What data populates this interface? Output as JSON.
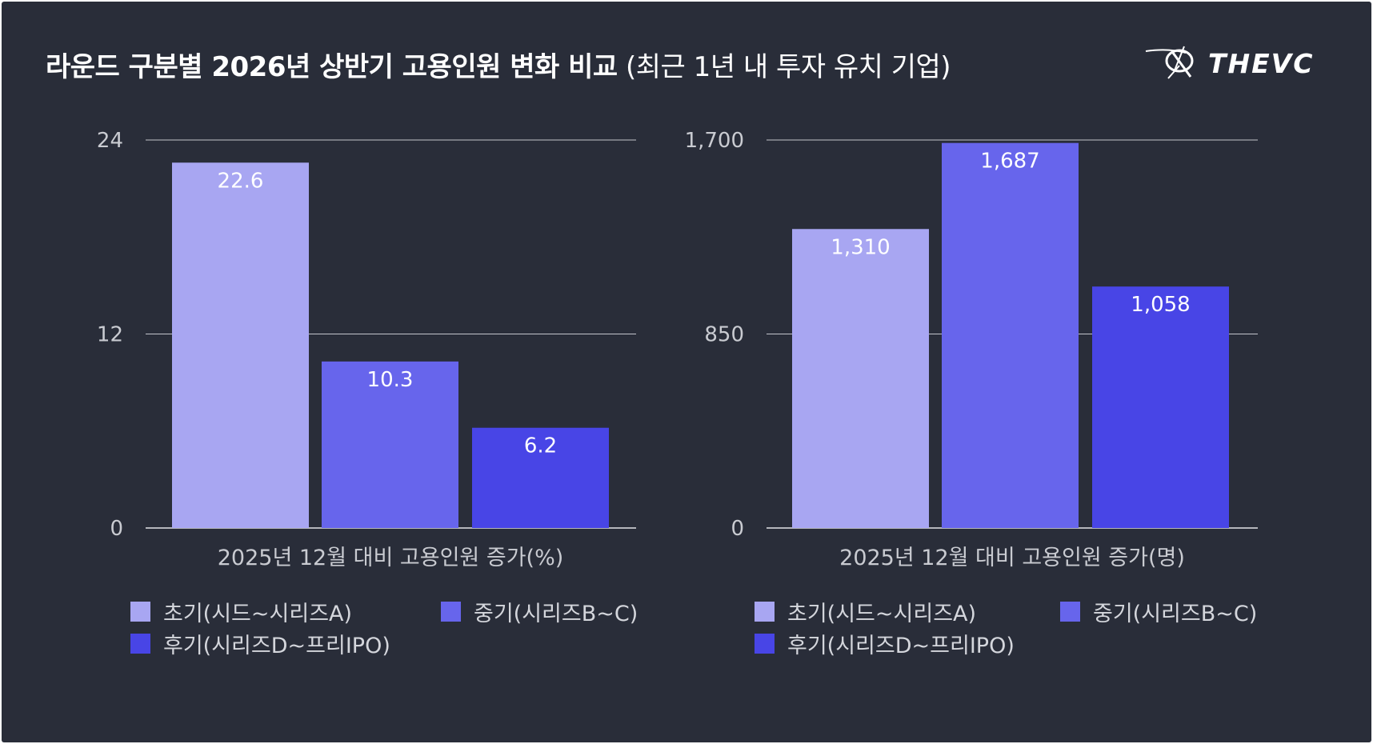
{
  "title": {
    "main": "라운드 구분별 2026년 상반기 고용인원 변화 비교",
    "sub": "(최근 1년 내 투자 유치 기업)"
  },
  "logo": {
    "text": "THEVC",
    "icon": "thevc-logo-icon"
  },
  "colors": {
    "background": "#292d39",
    "grid": "#c3c5cc",
    "axis_text": "#c9cbd1",
    "series": [
      "#a8a6f2",
      "#6765ec",
      "#4845e6"
    ]
  },
  "legend": [
    {
      "label": "초기(시드~시리즈A)"
    },
    {
      "label": "중기(시리즈B~C)"
    },
    {
      "label": "후기(시리즈D~프리IPO)"
    }
  ],
  "chart_data": [
    {
      "type": "bar",
      "title": "",
      "xlabel": "2025년 12월 대비 고용인원 증가(%)",
      "ylabel": "",
      "categories": [
        "초기(시드~시리즈A)",
        "중기(시리즈B~C)",
        "후기(시리즈D~프리IPO)"
      ],
      "values": [
        22.6,
        10.3,
        6.2
      ],
      "value_labels": [
        "22.6",
        "10.3",
        "6.2"
      ],
      "ylim": [
        0,
        24
      ],
      "yticks": [
        0,
        12,
        24
      ],
      "ytick_labels": [
        "0",
        "12",
        "24"
      ],
      "grid": true,
      "legend_position": "bottom"
    },
    {
      "type": "bar",
      "title": "",
      "xlabel": "2025년 12월 대비 고용인원 증가(명)",
      "ylabel": "",
      "categories": [
        "초기(시드~시리즈A)",
        "중기(시리즈B~C)",
        "후기(시리즈D~프리IPO)"
      ],
      "values": [
        1310,
        1687,
        1058
      ],
      "value_labels": [
        "1,310",
        "1,687",
        "1,058"
      ],
      "ylim": [
        0,
        1700
      ],
      "yticks": [
        0,
        850,
        1700
      ],
      "ytick_labels": [
        "0",
        "850",
        "1,700"
      ],
      "grid": true,
      "legend_position": "bottom"
    }
  ]
}
